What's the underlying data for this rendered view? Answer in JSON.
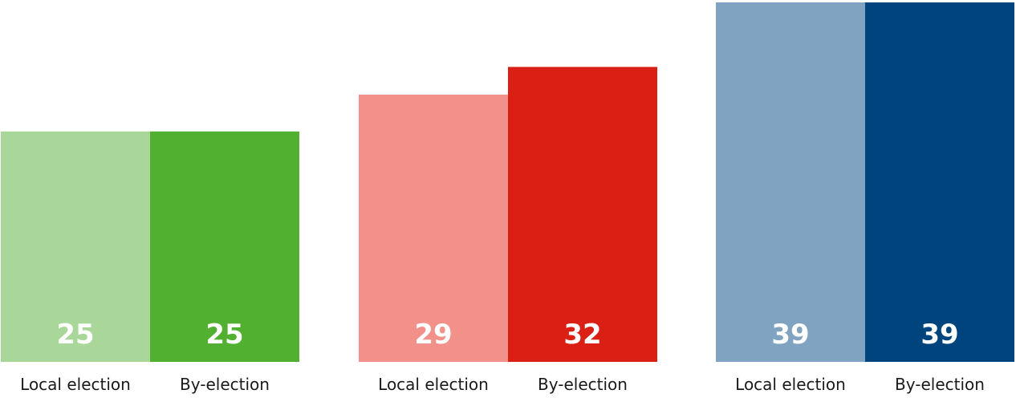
{
  "chart_data": {
    "type": "bar",
    "title": "",
    "xlabel": "",
    "ylabel": "",
    "ylim": [
      0,
      39
    ],
    "grid": false,
    "legend": "none",
    "data_labels": "inside-bottom",
    "groups": [
      {
        "bars": [
          {
            "category": "Local election",
            "value": 25,
            "color": "#a8d799"
          },
          {
            "category": "By-election",
            "value": 25,
            "color": "#52b031"
          }
        ]
      },
      {
        "bars": [
          {
            "category": "Local election",
            "value": 29,
            "color": "#f1918a"
          },
          {
            "category": "By-election",
            "value": 32,
            "color": "#da2015"
          }
        ]
      },
      {
        "bars": [
          {
            "category": "Local election",
            "value": 39,
            "color": "#7fa3c0"
          },
          {
            "category": "By-election",
            "value": 39,
            "color": "#00447e"
          }
        ]
      }
    ]
  }
}
